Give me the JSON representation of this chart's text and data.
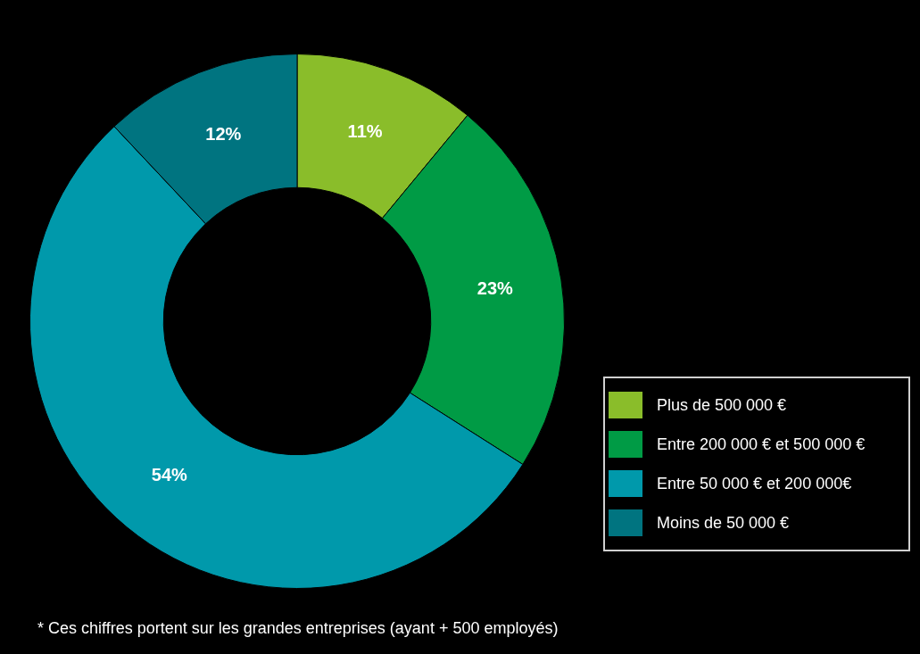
{
  "chart_data": {
    "type": "donut",
    "categories": [
      "Plus de 500 000 €",
      "Entre 200 000 € et 500 000 €",
      "Entre 50 000 € et 200 000€",
      "Moins de 50 000 €"
    ],
    "values": [
      11,
      23,
      54,
      12
    ],
    "colors": [
      "#8abd2a",
      "#009b45",
      "#0099ab",
      "#007480"
    ],
    "value_labels": [
      "11%",
      "23%",
      "54%",
      "12%"
    ],
    "legend": "right",
    "annotations": [
      "* Ces chiffres portent sur les grandes entreprises (ayant + 500 employés)"
    ]
  }
}
